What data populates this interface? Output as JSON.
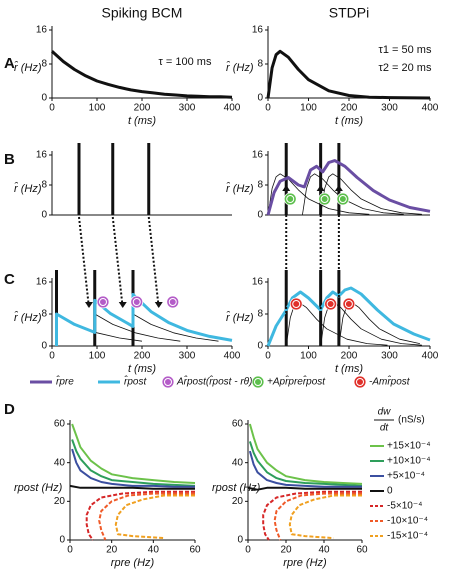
{
  "figure": {
    "panel_labels": [
      "A",
      "B",
      "C",
      "D"
    ],
    "legend": [
      {
        "label": "r̂pre",
        "color": "#6a4ea3",
        "kind": "line"
      },
      {
        "label": "r̂post",
        "color": "#3fb8e0",
        "kind": "line"
      },
      {
        "label": "Ar̂post(r̂post - rθ)",
        "color": "#b45cc8",
        "kind": "icon"
      },
      {
        "label": "+Apr̂prer̂post",
        "color": "#5cbf4c",
        "kind": "icon"
      },
      {
        "label": "-Amr̂post",
        "color": "#e0302a",
        "kind": "icon"
      }
    ]
  },
  "chart_data": [
    {
      "type": "line",
      "title": "Spiking BCM",
      "xlim": [
        0,
        400
      ],
      "ylim": [
        0,
        16
      ],
      "xticks": [
        0,
        100,
        200,
        300,
        400
      ],
      "yticks": [
        0,
        8,
        16
      ],
      "xlabel": "t (ms)",
      "ylabel": "r̂ (Hz)",
      "annotations": [
        "τ = 100 ms"
      ],
      "series": [
        {
          "color": "#111111",
          "x": [
            0,
            25,
            50,
            75,
            100,
            125,
            150,
            175,
            200,
            225,
            250,
            275,
            300,
            325,
            350,
            375,
            400
          ],
          "values": [
            11,
            8.6,
            6.7,
            5.2,
            4.0,
            3.2,
            2.5,
            1.9,
            1.5,
            1.2,
            0.9,
            0.7,
            0.5,
            0.4,
            0.3,
            0.3,
            0.2
          ]
        }
      ]
    },
    {
      "type": "line",
      "title": "STDPi",
      "xlim": [
        0,
        400
      ],
      "ylim": [
        0,
        16
      ],
      "xticks": [
        0,
        100,
        200,
        300,
        400
      ],
      "yticks": [
        0,
        8,
        16
      ],
      "xlabel": "t (ms)",
      "ylabel": "r̂ (Hz)",
      "annotations": [
        "τ1 = 50 ms",
        "τ2 = 20 ms"
      ],
      "series": [
        {
          "color": "#111111",
          "x": [
            0,
            10,
            20,
            30,
            50,
            75,
            100,
            150,
            200,
            250,
            300,
            400
          ],
          "values": [
            0,
            7.1,
            10.2,
            11,
            9.6,
            6.7,
            4.3,
            1.7,
            0.6,
            0.2,
            0.1,
            0
          ]
        }
      ]
    },
    {
      "type": "line",
      "xlim": [
        0,
        400
      ],
      "ylim": [
        0,
        16
      ],
      "yticks": [
        0,
        8,
        16
      ],
      "ylabel": "r̂ (Hz)",
      "spikes": [
        60,
        135,
        215
      ],
      "series": []
    },
    {
      "type": "line",
      "xlim": [
        0,
        400
      ],
      "ylim": [
        0,
        16
      ],
      "yticks": [
        0,
        8,
        16
      ],
      "ylabel": "r̂ (Hz)",
      "spikes": [
        45,
        130,
        175
      ],
      "series": [
        {
          "color": "#111111",
          "thin": true,
          "x": [
            0,
            10,
            20,
            30,
            50,
            75,
            100,
            150,
            200,
            250
          ],
          "values": [
            0,
            7.1,
            10.2,
            11,
            9.6,
            6.7,
            4.3,
            1.7,
            0.6,
            0.2
          ]
        },
        {
          "color": "#111111",
          "thin": true,
          "x": [
            85,
            95,
            105,
            115,
            135,
            160,
            185,
            235,
            285,
            335
          ],
          "values": [
            0,
            7.1,
            10.2,
            11,
            9.6,
            6.7,
            4.3,
            1.7,
            0.6,
            0.2
          ]
        },
        {
          "color": "#111111",
          "thin": true,
          "x": [
            130,
            140,
            150,
            160,
            180,
            205,
            230,
            280,
            330,
            380
          ],
          "values": [
            0,
            7.1,
            10.2,
            11,
            9.6,
            6.7,
            4.3,
            1.7,
            0.6,
            0.2
          ]
        },
        {
          "color": "#6a4ea3",
          "x": [
            0,
            15,
            30,
            50,
            75,
            90,
            105,
            120,
            135,
            150,
            165,
            190,
            220,
            260,
            300,
            350,
            400
          ],
          "values": [
            0,
            6,
            9,
            10,
            8,
            7.5,
            12,
            13,
            11.5,
            14,
            14.5,
            13,
            10,
            6.5,
            4,
            2,
            1
          ]
        }
      ]
    },
    {
      "type": "line",
      "xlim": [
        0,
        400
      ],
      "ylim": [
        0,
        16
      ],
      "xticks": [
        0,
        100,
        200,
        300,
        400
      ],
      "yticks": [
        0,
        8,
        16
      ],
      "xlabel": "t (ms)",
      "ylabel": "r̂ (Hz)",
      "spikes": [
        10,
        95,
        180
      ],
      "series": [
        {
          "color": "#111111",
          "thin": true,
          "x": [
            10,
            50,
            100,
            150,
            200
          ],
          "values": [
            8,
            5.4,
            3.3,
            2.0,
            1.2
          ]
        },
        {
          "color": "#111111",
          "thin": true,
          "x": [
            95,
            135,
            185,
            235,
            285
          ],
          "values": [
            8,
            5.4,
            3.3,
            2.0,
            1.2
          ]
        },
        {
          "color": "#111111",
          "thin": true,
          "x": [
            180,
            220,
            270,
            320,
            370
          ],
          "values": [
            8,
            5.4,
            3.3,
            2.0,
            1.2
          ]
        },
        {
          "color": "#3fb8e0",
          "x": [
            10,
            10,
            50,
            95,
            95,
            130,
            180,
            180,
            220,
            260,
            300,
            350,
            400
          ],
          "values": [
            0,
            8,
            5.4,
            3.4,
            11.4,
            8.1,
            4.9,
            12.9,
            8.6,
            5.8,
            3.9,
            2.4,
            1.4
          ]
        }
      ]
    },
    {
      "type": "line",
      "xlim": [
        0,
        400
      ],
      "ylim": [
        0,
        16
      ],
      "xticks": [
        0,
        100,
        200,
        300,
        400
      ],
      "yticks": [
        0,
        8,
        16
      ],
      "xlabel": "t (ms)",
      "ylabel": "r̂ (Hz)",
      "spikes": [
        45,
        130,
        175
      ],
      "series": [
        {
          "color": "#111111",
          "thin": true,
          "x": [
            45,
            55,
            65,
            75,
            95,
            120,
            145,
            195,
            245,
            295
          ],
          "values": [
            0,
            7.1,
            10.2,
            11,
            9.6,
            6.7,
            4.3,
            1.7,
            0.6,
            0.2
          ]
        },
        {
          "color": "#111111",
          "thin": true,
          "x": [
            130,
            140,
            150,
            160,
            180,
            205,
            230,
            280,
            330,
            380
          ],
          "values": [
            0,
            7.1,
            10.2,
            11,
            9.6,
            6.7,
            4.3,
            1.7,
            0.6,
            0.2
          ]
        },
        {
          "color": "#111111",
          "thin": true,
          "x": [
            175,
            185,
            195,
            205,
            225,
            250,
            275,
            325,
            375
          ],
          "values": [
            0,
            7.1,
            10.2,
            11,
            9.6,
            6.7,
            4.3,
            1.7,
            0.6
          ]
        },
        {
          "color": "#3fb8e0",
          "x": [
            0,
            20,
            45,
            60,
            80,
            100,
            130,
            145,
            160,
            175,
            190,
            205,
            230,
            270,
            310,
            360,
            400
          ],
          "values": [
            0,
            5,
            9,
            12,
            13.5,
            12,
            9,
            12,
            13.5,
            12.5,
            14,
            14.5,
            13,
            9,
            5.5,
            3,
            1.5
          ]
        }
      ]
    },
    {
      "type": "line",
      "xlim": [
        0,
        60
      ],
      "ylim": [
        0,
        60
      ],
      "xticks": [
        0,
        20,
        40,
        60
      ],
      "yticks": [
        0,
        20,
        40,
        60
      ],
      "xlabel": "rpre (Hz)",
      "ylabel": "rpost (Hz)",
      "series": [
        {
          "color": "#6cc24a",
          "x": [
            1,
            3,
            5,
            10,
            15,
            20,
            30,
            40,
            50,
            60
          ],
          "values": [
            60,
            54,
            48,
            41,
            37,
            34,
            32,
            31,
            30,
            29.5
          ]
        },
        {
          "color": "#2e9e5b",
          "x": [
            1,
            3,
            5,
            10,
            15,
            20,
            30,
            40,
            50,
            60
          ],
          "values": [
            52,
            46,
            42,
            36,
            33,
            31,
            30,
            29,
            28.5,
            28
          ]
        },
        {
          "color": "#3b4fa0",
          "x": [
            1,
            3,
            5,
            10,
            15,
            20,
            30,
            40,
            50,
            60
          ],
          "values": [
            47,
            40,
            36,
            32,
            30,
            29,
            28,
            28,
            27.5,
            27.5
          ]
        },
        {
          "color": "#111111",
          "x": [
            0,
            5,
            10,
            20,
            30,
            40,
            50,
            60
          ],
          "values": [
            28,
            27,
            27,
            27,
            27,
            26.5,
            26.5,
            26.5
          ]
        },
        {
          "color": "#d62728",
          "dash": true,
          "x": [
            60,
            40,
            25,
            15,
            10,
            8,
            8,
            9,
            11
          ],
          "values": [
            25,
            25,
            24,
            22,
            18,
            13,
            8,
            3,
            0
          ]
        },
        {
          "color": "#f05a28",
          "dash": true,
          "x": [
            60,
            40,
            28,
            20,
            15,
            14,
            15,
            17
          ],
          "values": [
            24,
            24,
            23,
            20,
            15,
            10,
            5,
            0
          ]
        },
        {
          "color": "#f0a020",
          "dash": true,
          "x": [
            60,
            45,
            35,
            27,
            23,
            22,
            23,
            30,
            45
          ],
          "values": [
            23,
            23,
            21,
            18,
            13,
            8,
            3,
            2,
            1
          ]
        }
      ]
    },
    {
      "type": "line",
      "xlim": [
        0,
        60
      ],
      "ylim": [
        0,
        60
      ],
      "xticks": [
        0,
        20,
        40,
        60
      ],
      "yticks": [
        0,
        20,
        40,
        60
      ],
      "xlabel": "rpre (Hz)",
      "ylabel": "rpost (Hz)",
      "legend_title": {
        "numerator": "dw",
        "denominator": "dt",
        "unit": "(nS/s)"
      },
      "series": [
        {
          "name": "+15×10⁻⁴",
          "color": "#6cc24a",
          "x": [
            1,
            3,
            5,
            10,
            15,
            20,
            30,
            40,
            50,
            60
          ],
          "values": [
            60,
            53,
            47,
            40,
            36,
            33,
            31,
            30,
            29.5,
            29
          ]
        },
        {
          "name": "+10×10⁻⁴",
          "color": "#2e9e5b",
          "x": [
            1,
            3,
            5,
            10,
            15,
            20,
            30,
            40,
            50,
            60
          ],
          "values": [
            51,
            45,
            41,
            35,
            32,
            30.5,
            29.5,
            29,
            28.5,
            28
          ]
        },
        {
          "name": "+5×10⁻⁴",
          "color": "#3b4fa0",
          "x": [
            1,
            3,
            5,
            10,
            15,
            20,
            30,
            40,
            50,
            60
          ],
          "values": [
            46,
            39,
            35,
            31,
            29.5,
            28.5,
            28,
            27.5,
            27.5,
            27.5
          ]
        },
        {
          "name": "0",
          "color": "#111111",
          "x": [
            0,
            5,
            10,
            20,
            30,
            40,
            50,
            60
          ],
          "values": [
            27,
            26,
            27,
            27,
            26.5,
            26.5,
            26.5,
            26.5
          ]
        },
        {
          "name": "-5×10⁻⁴",
          "color": "#d62728",
          "dash": true,
          "x": [
            60,
            40,
            25,
            15,
            10,
            8,
            8,
            9,
            11
          ],
          "values": [
            25,
            25,
            24,
            22,
            18,
            13,
            8,
            3,
            0
          ]
        },
        {
          "name": "-10×10⁻⁴",
          "color": "#f05a28",
          "dash": true,
          "x": [
            60,
            40,
            28,
            20,
            15,
            14,
            15,
            17
          ],
          "values": [
            24,
            24,
            23,
            20,
            15,
            10,
            5,
            0
          ]
        },
        {
          "name": "-15×10⁻⁴",
          "color": "#f0a020",
          "dash": true,
          "x": [
            60,
            45,
            35,
            27,
            23,
            22,
            23,
            30,
            45
          ],
          "values": [
            23,
            23,
            21,
            18,
            13,
            8,
            3,
            2,
            1
          ]
        }
      ]
    }
  ]
}
